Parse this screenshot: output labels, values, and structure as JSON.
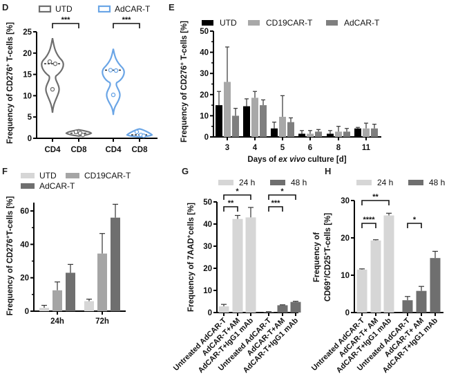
{
  "colors": {
    "utd_violin": "#6e6e6e",
    "adcar_violin": "#6aa5e6",
    "black": "#000000",
    "light_gray": "#d6d6d6",
    "mid_gray": "#a5a5a5",
    "dark_gray": "#6f6f6f",
    "e_cd19": "#a8a8a8",
    "e_adcar": "#7f7f7f"
  },
  "chart_data": [
    {
      "panel": "D",
      "type": "violin",
      "title": "",
      "ylabel": "Frequency of CD276+ T-cells [%]",
      "ylabel_parts": {
        "pre": "Frequency of CD276",
        "sup": "+",
        "post": " T-cells [%]"
      },
      "ylim": [
        0,
        25
      ],
      "yticks": [
        0,
        5,
        10,
        15,
        20,
        25
      ],
      "legend": [
        "UTD",
        "AdCAR-T"
      ],
      "legend_placement": "top",
      "categories": [
        "CD4",
        "CD8",
        "CD4",
        "CD8"
      ],
      "groups": [
        {
          "name": "UTD",
          "category": "CD4",
          "points": [
            18.0,
            17.5,
            11.5
          ],
          "median": 17.5,
          "range": [
            6,
            23.5
          ]
        },
        {
          "name": "UTD",
          "category": "CD8",
          "points": [
            1.5,
            1.2,
            0.8
          ],
          "median": 1.2,
          "range": [
            0.5,
            2
          ]
        },
        {
          "name": "AdCAR-T",
          "category": "CD4",
          "points": [
            16.0,
            15.9,
            10.2
          ],
          "median": 16.0,
          "range": [
            5.5,
            21
          ]
        },
        {
          "name": "AdCAR-T",
          "category": "CD8",
          "points": [
            1.5,
            0.8,
            0.6
          ],
          "median": 0.8,
          "range": [
            0.3,
            2.2
          ]
        }
      ],
      "significance": [
        {
          "from": 0,
          "to": 1,
          "label": "***"
        },
        {
          "from": 2,
          "to": 3,
          "label": "***"
        }
      ]
    },
    {
      "panel": "E",
      "type": "bar",
      "title": "",
      "xlabel": "Days of ex vivo culture [d]",
      "xlabel_parts": {
        "pre": "Days of ",
        "italic": "ex vivo",
        "post": " culture [d]"
      },
      "ylabel": "Frequency of CD276+ T-cells [%]",
      "ylim": [
        0,
        50
      ],
      "yticks": [
        0,
        10,
        20,
        30,
        40,
        50
      ],
      "legend_placement": "top",
      "categories": [
        "3",
        "4",
        "5",
        "6",
        "8",
        "11"
      ],
      "series": [
        {
          "name": "UTD",
          "values": [
            15,
            14.5,
            4,
            1.5,
            1.5,
            4
          ],
          "errors": [
            6.5,
            3.5,
            3,
            1.5,
            1.5,
            0.5
          ]
        },
        {
          "name": "CD19CAR-T",
          "values": [
            26,
            18.5,
            9.5,
            1.5,
            2.5,
            4
          ],
          "errors": [
            16.5,
            3,
            10,
            1.5,
            2.5,
            2.5
          ]
        },
        {
          "name": "AdCAR-T",
          "values": [
            10,
            15,
            7,
            2.5,
            2.5,
            4
          ],
          "errors": [
            3.5,
            2.5,
            2,
            1,
            1.5,
            2
          ]
        }
      ]
    },
    {
      "panel": "F",
      "type": "bar",
      "title": "",
      "xlabel": "",
      "ylabel": "Frequency of CD276+ T-cells [%]",
      "ylim": [
        0,
        65
      ],
      "yticks": [
        0,
        20,
        40,
        60
      ],
      "legend_placement": "top",
      "categories": [
        "24h",
        "72h"
      ],
      "series": [
        {
          "name": "UTD",
          "values": [
            2,
            6
          ],
          "errors": [
            1.5,
            1.2
          ]
        },
        {
          "name": "CD19CAR-T",
          "values": [
            12.5,
            34.5
          ],
          "errors": [
            5,
            12
          ]
        },
        {
          "name": "AdCAR-T",
          "values": [
            23,
            56
          ],
          "errors": [
            5,
            8
          ]
        }
      ]
    },
    {
      "panel": "G",
      "type": "bar",
      "title": "",
      "ylabel": "Frequency of 7AAD+cells [%]",
      "ylabel_parts": {
        "pre": "Frequency of 7AAD",
        "sup": "+",
        "post": "cells [%]"
      },
      "ylim": [
        0,
        50
      ],
      "yticks": [
        0,
        10,
        20,
        30,
        40,
        50
      ],
      "legend": [
        "24 h",
        "48 h"
      ],
      "legend_placement": "top",
      "categories": [
        "Untreated AdCAR-T",
        "AdCAR-T+AM",
        "AdCAR-T+IgG1 mAb",
        "Untreated AdCAR-T",
        "AdCAR-T+AM",
        "AdCAR-T+IgG1 mAb"
      ],
      "series_by_bar": [
        "24 h",
        "24 h",
        "24 h",
        "48 h",
        "48 h",
        "48 h"
      ],
      "values": [
        2.8,
        42.3,
        43.0,
        0.3,
        3.3,
        4.8
      ],
      "errors": [
        0.9,
        1.6,
        4.5,
        0.1,
        0.2,
        0.3
      ],
      "significance": [
        {
          "from": 0,
          "to": 2,
          "label": "*",
          "level": 2
        },
        {
          "from": 0,
          "to": 1,
          "label": "**",
          "level": 1
        },
        {
          "from": 3,
          "to": 5,
          "label": "*",
          "level": 2
        },
        {
          "from": 3,
          "to": 4,
          "label": "***",
          "level": 1
        }
      ]
    },
    {
      "panel": "H",
      "type": "bar",
      "title": "",
      "ylabel": "Frequency of CD69+/CD25+T-cells [%]",
      "ylabel_line1": "Frequency of",
      "ylabel_parts": {
        "a": "CD69",
        "sup1": "+",
        "b": "/CD25",
        "sup2": "+",
        "c": "T-cells [%]"
      },
      "ylim": [
        0,
        30
      ],
      "yticks": [
        0,
        10,
        20,
        30
      ],
      "legend": [
        "24 h",
        "48 h"
      ],
      "legend_placement": "top",
      "categories": [
        "Untreated AdCAR-T",
        "AdCAR-T+ AM",
        "AdCAR-T+IgG1 mAb",
        "Untreated AdCAR-T",
        "AdCAR-T+ AM",
        "AdCAR-T+IgG1 mAb"
      ],
      "series_by_bar": [
        "24 h",
        "24 h",
        "24 h",
        "48 h",
        "48 h",
        "48 h"
      ],
      "values": [
        11.5,
        19.3,
        26.0,
        3.3,
        5.8,
        14.6
      ],
      "errors": [
        0.2,
        0.2,
        0.6,
        1.0,
        1.2,
        1.8
      ],
      "significance": [
        {
          "from": 0,
          "to": 2,
          "label": "**",
          "level": 2
        },
        {
          "from": 0,
          "to": 1,
          "label": "****",
          "level": 1
        },
        {
          "from": 3,
          "to": 4,
          "label": "*",
          "level": 1
        }
      ]
    }
  ]
}
